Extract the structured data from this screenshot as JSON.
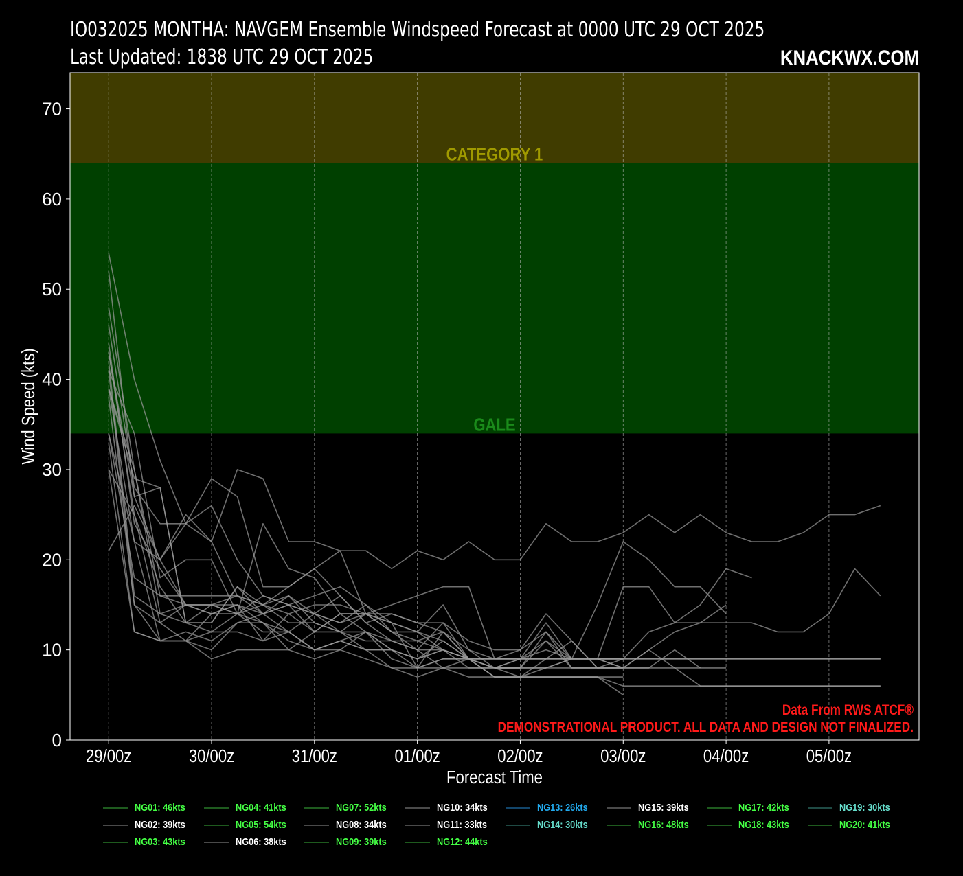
{
  "header": {
    "title_line1": "IO032025 MONTHA: NAVGEM Ensemble Windspeed Forecast at 0000 UTC 29 OCT 2025",
    "title_line2": "Last Updated: 1838 UTC 29 OCT 2025",
    "brand": "KNACKWX.COM"
  },
  "notes": {
    "source": "Data From RWS ATCF®",
    "disclaimer": "DEMONSTRATIONAL PRODUCT. ALL DATA AND DESIGN NOT FINALIZED."
  },
  "colors": {
    "background": "#000000",
    "category1_band": "#403c00",
    "gale_band": "#004000",
    "category1_label": "#a09a00",
    "gale_label": "#1a8a1a",
    "note_red": "#ff1a1a",
    "line_gray": "#9a9a9a",
    "legend_green": "#44ff44",
    "legend_cyan": "#66ddcc",
    "legend_blue": "#22aaee",
    "legend_white": "#ffffff"
  },
  "chart_data": {
    "type": "line",
    "xlabel": "Forecast Time",
    "ylabel": "Wind Speed (kts)",
    "ylim": [
      0,
      74
    ],
    "xlim": [
      -9,
      189
    ],
    "x_ticks": [
      0,
      24,
      48,
      72,
      96,
      120,
      144,
      168
    ],
    "x_tick_labels": [
      "29/00z",
      "30/00z",
      "31/00z",
      "01/00z",
      "02/00z",
      "03/00z",
      "04/00z",
      "05/00z"
    ],
    "y_ticks": [
      0,
      10,
      20,
      30,
      40,
      50,
      60,
      70
    ],
    "grid": "vertical dashed",
    "bands": [
      {
        "label": "GALE",
        "from": 34,
        "to": 64
      },
      {
        "label": "CATEGORY 1",
        "from": 64,
        "to": 74
      }
    ],
    "series": [
      {
        "name": "NG01: 46kts",
        "legend_color": "green",
        "x": [
          0,
          6,
          12,
          18,
          24,
          30,
          36,
          42,
          48,
          54,
          60,
          66,
          72,
          78,
          84,
          90,
          96,
          102
        ],
        "values": [
          46,
          28,
          24,
          24,
          26,
          20,
          16,
          15,
          12,
          12,
          10,
          10,
          8,
          9,
          9,
          8,
          9,
          9
        ]
      },
      {
        "name": "NG02: 39kts",
        "legend_color": "white",
        "x": [
          0,
          6,
          12,
          18,
          24,
          30,
          36,
          42,
          48,
          54,
          60,
          66,
          72,
          78,
          84,
          90,
          96,
          102,
          108,
          114,
          120
        ],
        "values": [
          39,
          29,
          28,
          13,
          15,
          16,
          14,
          15,
          16,
          17,
          15,
          12,
          11,
          10,
          9,
          9,
          10,
          12,
          8,
          8,
          9
        ]
      },
      {
        "name": "NG03: 43kts",
        "legend_color": "green",
        "x": [
          0,
          6,
          12,
          18,
          24,
          30,
          36,
          42,
          48,
          54,
          60,
          66,
          72,
          78,
          84,
          90,
          96,
          102,
          108,
          114,
          120,
          126,
          132,
          138,
          144,
          150
        ],
        "values": [
          43,
          27,
          20,
          25,
          22,
          16,
          15,
          16,
          14,
          13,
          14,
          12,
          10,
          13,
          9,
          8,
          8,
          8,
          9,
          9,
          9,
          12,
          13,
          15,
          19,
          18
        ]
      },
      {
        "name": "NG04: 41kts",
        "legend_color": "green",
        "x": [
          0,
          6,
          12,
          18,
          24,
          30,
          36,
          42,
          48,
          54,
          60,
          66,
          72,
          78,
          84,
          90,
          96
        ],
        "values": [
          41,
          15,
          13,
          15,
          15,
          14,
          16,
          15,
          14,
          16,
          13,
          11,
          10,
          8,
          9,
          8,
          8
        ]
      },
      {
        "name": "NG05: 54kts",
        "legend_color": "green",
        "x": [
          0,
          6,
          12,
          18,
          24,
          30,
          36,
          42,
          48,
          54,
          60,
          66,
          72,
          78,
          84,
          90,
          96,
          102,
          108,
          114,
          120,
          126,
          132,
          138,
          144,
          150,
          156,
          162,
          168,
          174,
          180
        ],
        "values": [
          54,
          40,
          31,
          24,
          29,
          27,
          17,
          17,
          19,
          21,
          21,
          19,
          21,
          20,
          22,
          20,
          20,
          24,
          22,
          22,
          23,
          25,
          23,
          25,
          23,
          22,
          22,
          23,
          25,
          25,
          26
        ]
      },
      {
        "name": "NG06: 38kts",
        "legend_color": "white",
        "x": [
          0,
          6,
          12,
          18,
          24,
          30,
          36,
          42,
          48,
          54,
          60,
          66,
          72,
          78,
          84,
          90,
          96,
          102,
          108,
          114,
          120,
          126,
          132,
          138,
          144,
          150,
          156,
          162,
          168,
          174,
          180
        ],
        "values": [
          38,
          15,
          11,
          11,
          10,
          13,
          14,
          12,
          10,
          10,
          12,
          10,
          9,
          11,
          9,
          7,
          7,
          7,
          7,
          7,
          6,
          6,
          6,
          6,
          6,
          6,
          6,
          6,
          6,
          6,
          6
        ]
      },
      {
        "name": "NG07: 52kts",
        "legend_color": "green",
        "x": [
          0,
          6,
          12,
          18,
          24,
          30,
          36,
          42,
          48,
          54,
          60,
          66,
          72,
          78,
          84,
          90,
          96,
          102,
          108,
          114,
          120,
          126,
          132,
          138,
          144,
          150,
          156,
          162,
          168,
          174,
          180
        ],
        "values": [
          52,
          27,
          28,
          13,
          13,
          17,
          15,
          17,
          19,
          16,
          13,
          14,
          13,
          13,
          11,
          10,
          10,
          14,
          11,
          8,
          8,
          10,
          8,
          6,
          6,
          6,
          6,
          6,
          6,
          6,
          6
        ]
      },
      {
        "name": "NG08: 34kts",
        "legend_color": "white",
        "x": [
          0,
          6,
          12,
          18,
          24,
          30,
          36,
          42,
          48,
          54,
          60,
          66,
          72,
          78,
          84,
          90,
          96,
          102,
          108,
          114,
          120,
          126,
          132,
          138,
          144,
          150,
          156,
          162,
          168,
          174,
          180
        ],
        "values": [
          34,
          18,
          16,
          16,
          16,
          16,
          15,
          14,
          15,
          15,
          14,
          14,
          13,
          12,
          9,
          9,
          9,
          11,
          9,
          9,
          9,
          9,
          9,
          9,
          9,
          9,
          9,
          9,
          9,
          9,
          9
        ]
      },
      {
        "name": "NG09: 39kts",
        "legend_color": "green",
        "x": [
          0,
          6,
          12,
          18,
          24,
          30,
          36,
          42,
          48,
          54,
          60,
          66,
          72,
          78,
          84,
          90,
          96,
          102,
          108,
          114,
          120,
          126,
          132,
          138,
          144
        ],
        "values": [
          39,
          30,
          14,
          15,
          14,
          15,
          14,
          16,
          13,
          12,
          11,
          11,
          11,
          12,
          9,
          7,
          7,
          9,
          11,
          8,
          8,
          10,
          12,
          13,
          15
        ]
      },
      {
        "name": "NG10: 34kts",
        "legend_color": "white",
        "x": [
          0,
          6,
          12,
          18,
          24,
          30,
          36,
          42,
          48,
          54,
          60,
          66,
          72,
          78,
          84,
          90,
          96,
          102,
          108,
          114,
          120,
          126,
          132,
          138,
          144,
          150,
          156,
          162,
          168,
          174,
          180
        ],
        "values": [
          34,
          22,
          11,
          12,
          11,
          13,
          13,
          10,
          12,
          14,
          12,
          11,
          10,
          10,
          9,
          9,
          9,
          9,
          9,
          9,
          9,
          9,
          9,
          9,
          9,
          9,
          9,
          9,
          9,
          9,
          9
        ]
      },
      {
        "name": "NG11: 33kts",
        "legend_color": "white",
        "x": [
          0,
          6,
          12,
          18,
          24,
          30,
          36,
          42,
          48,
          54,
          60,
          66,
          72,
          78,
          84,
          90,
          96,
          102,
          108,
          114,
          120
        ],
        "values": [
          33,
          12,
          11,
          11,
          9,
          10,
          10,
          10,
          9,
          10,
          9,
          8,
          7,
          8,
          7,
          7,
          7,
          7,
          7,
          7,
          5
        ]
      },
      {
        "name": "NG12: 44kts",
        "legend_color": "green",
        "x": [
          0,
          6,
          12,
          18,
          24,
          30,
          36,
          42,
          48,
          54,
          60,
          66,
          72,
          78,
          84,
          90,
          96,
          102,
          108,
          114,
          120
        ],
        "values": [
          44,
          24,
          19,
          15,
          15,
          14,
          13,
          12,
          10,
          11,
          10,
          10,
          9,
          10,
          9,
          7,
          7,
          8,
          9,
          9,
          9
        ]
      },
      {
        "name": "NG13: 26kts",
        "legend_color": "blue",
        "x": [
          0,
          6,
          12,
          18,
          24,
          30,
          36,
          42,
          48,
          54,
          60,
          66,
          72,
          78,
          84,
          90,
          96,
          102,
          108,
          114,
          120
        ],
        "values": [
          21,
          26,
          20,
          24,
          22,
          30,
          29,
          22,
          22,
          21,
          14,
          15,
          16,
          17,
          17,
          9,
          9,
          13,
          9,
          9,
          8
        ]
      },
      {
        "name": "NG14: 30kts",
        "legend_color": "cyan",
        "x": [
          0,
          6,
          12,
          18,
          24,
          30,
          36,
          42,
          48,
          54,
          60,
          66,
          72,
          78,
          84,
          90,
          96,
          102,
          108,
          114,
          120
        ],
        "values": [
          30,
          12,
          11,
          11,
          12,
          12,
          11,
          12,
          10,
          11,
          12,
          9,
          8,
          8,
          8,
          8,
          8,
          8,
          8,
          8,
          8
        ]
      },
      {
        "name": "NG15: 39kts",
        "legend_color": "white",
        "x": [
          0,
          6,
          12,
          18,
          24,
          30,
          36,
          42,
          48,
          54,
          60,
          66,
          72,
          78,
          84,
          90,
          96,
          102,
          108,
          114,
          120,
          126,
          132,
          138
        ],
        "values": [
          39,
          22,
          20,
          15,
          15,
          15,
          13,
          11,
          10,
          11,
          10,
          8,
          8,
          9,
          9,
          9,
          9,
          9,
          9,
          9,
          8,
          8,
          10,
          8
        ]
      },
      {
        "name": "NG16: 48kts",
        "legend_color": "green",
        "x": [
          0,
          6,
          12,
          18,
          24,
          30,
          36,
          42,
          48,
          54,
          60,
          66,
          72,
          78,
          84,
          90,
          96,
          102,
          108,
          114,
          120,
          126,
          132,
          138,
          144
        ],
        "values": [
          48,
          30,
          16,
          15,
          14,
          14,
          15,
          13,
          13,
          12,
          14,
          13,
          12,
          15,
          10,
          9,
          9,
          10,
          9,
          15,
          22,
          20,
          17,
          17,
          14
        ]
      },
      {
        "name": "NG17: 42kts",
        "legend_color": "green",
        "x": [
          0,
          6,
          12,
          18,
          24,
          30,
          36,
          42,
          48,
          54,
          60,
          66,
          72,
          78,
          84,
          90,
          96,
          102,
          108,
          114,
          120,
          126,
          132,
          138,
          144
        ],
        "values": [
          42,
          16,
          14,
          13,
          12,
          14,
          12,
          12,
          14,
          12,
          12,
          10,
          9,
          10,
          8,
          8,
          8,
          11,
          8,
          8,
          8,
          8,
          8,
          8,
          8
        ]
      },
      {
        "name": "NG18: 43kts",
        "legend_color": "green",
        "x": [
          0,
          6,
          12,
          18,
          24,
          30,
          36,
          42,
          48,
          54,
          60,
          66,
          72,
          78,
          84,
          90,
          96,
          102,
          108,
          114,
          120,
          126,
          132,
          138,
          144,
          150,
          156,
          162,
          168,
          174,
          180
        ],
        "values": [
          43,
          25,
          17,
          13,
          13,
          17,
          14,
          15,
          14,
          13,
          15,
          13,
          8,
          12,
          10,
          8,
          8,
          12,
          9,
          9,
          17,
          17,
          13,
          13,
          13,
          13,
          12,
          12,
          14,
          19,
          16
        ]
      },
      {
        "name": "NG19: 30kts",
        "legend_color": "cyan",
        "x": [
          0,
          6,
          12,
          18,
          24,
          30,
          36,
          42,
          48,
          54,
          60,
          66,
          72,
          78,
          84,
          90,
          96,
          102,
          108,
          114,
          120
        ],
        "values": [
          30,
          25,
          13,
          11,
          14,
          15,
          11,
          14,
          12,
          14,
          14,
          13,
          12,
          10,
          9,
          8,
          7,
          7,
          7,
          7,
          7
        ]
      },
      {
        "name": "NG20: 41kts",
        "legend_color": "green",
        "x": [
          0,
          6,
          12,
          18,
          24,
          30,
          36,
          42,
          48,
          54,
          60,
          66,
          72,
          78,
          84,
          90,
          96,
          102,
          108,
          114,
          120
        ],
        "values": [
          41,
          34,
          18,
          20,
          20,
          14,
          24,
          19,
          18,
          14,
          14,
          12,
          12,
          11,
          9,
          8,
          9,
          9,
          9,
          9,
          9
        ]
      }
    ]
  }
}
